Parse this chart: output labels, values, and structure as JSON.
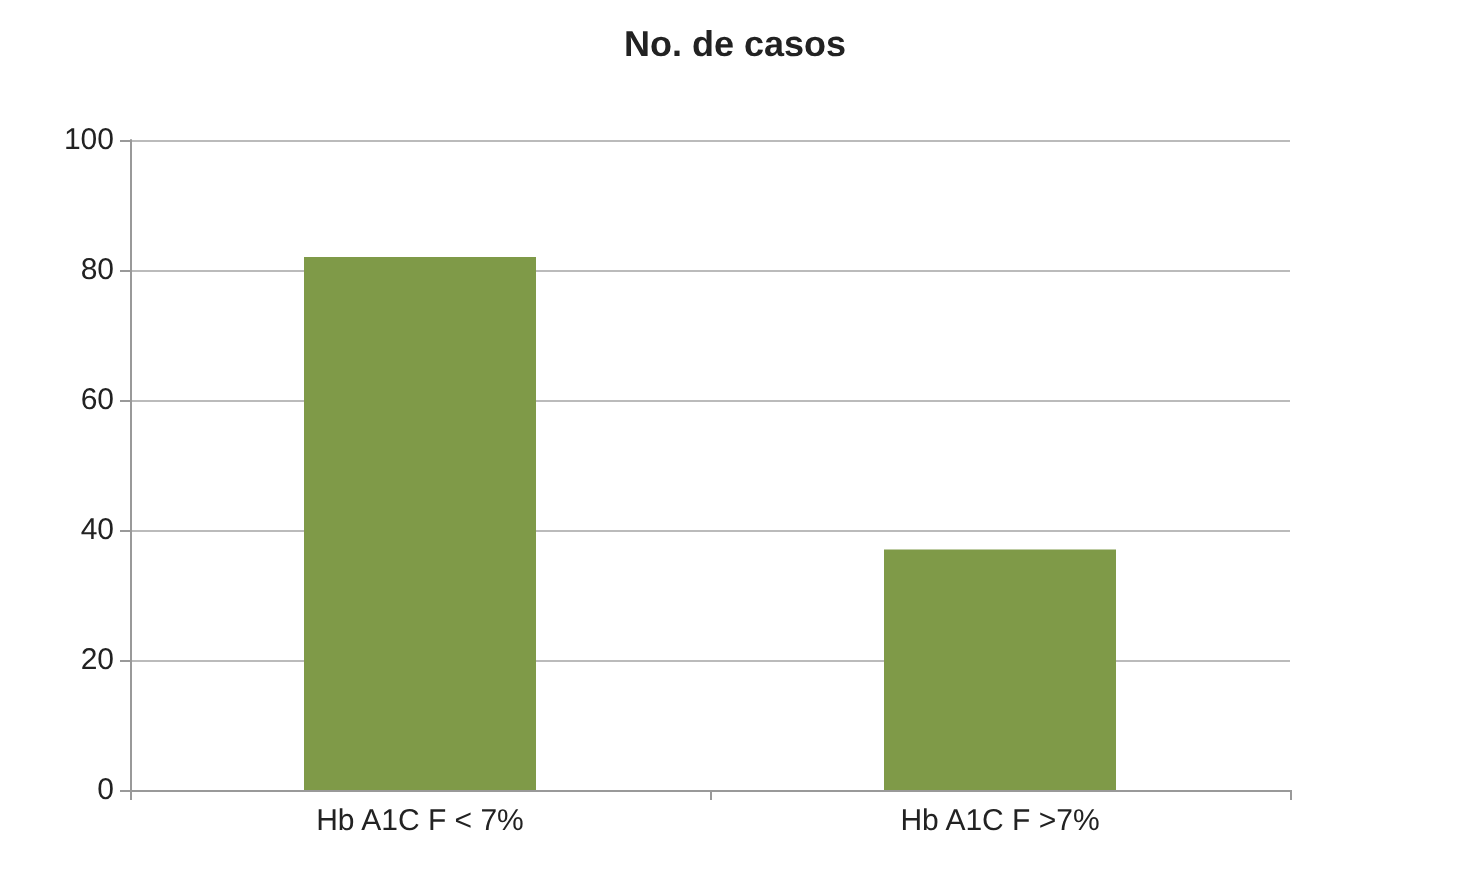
{
  "chart_data": {
    "type": "bar",
    "title": "No. de casos",
    "categories": [
      "Hb A1C F < 7%",
      "Hb A1C F >7%"
    ],
    "values": [
      82,
      37
    ],
    "color": "#7f9a48",
    "ylim": [
      0,
      100
    ],
    "yticks": [
      0,
      20,
      40,
      60,
      80,
      100
    ],
    "grid": "y"
  }
}
